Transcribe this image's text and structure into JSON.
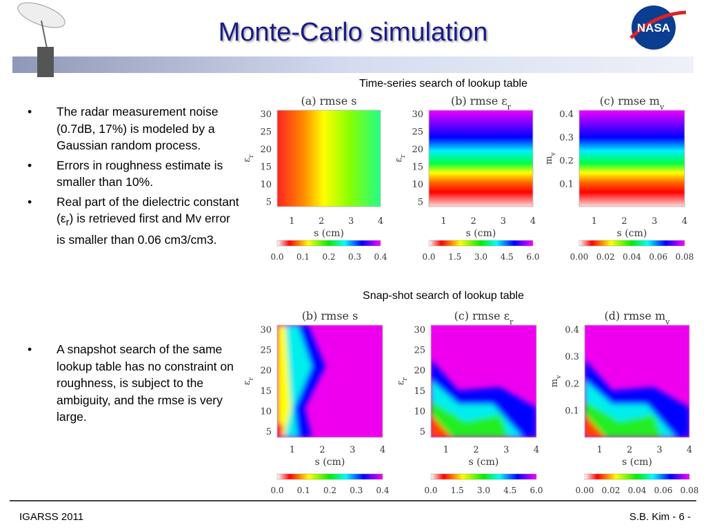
{
  "header": {
    "title": "Monte-Carlo simulation"
  },
  "bullets_top": [
    [
      "The radar measurement noise (0.7dB, 17%) is modeled by a Gaussian random process."
    ],
    [
      "Errors in roughness estimate is smaller than 10%."
    ],
    [
      "Real part of the dielectric constant (ε",
      "r",
      ") is retrieved first and Mv error is smaller than 0.06 cm3/cm3."
    ]
  ],
  "bullets_bottom": [
    [
      "A snapshot search of the same lookup table has no constraint on roughness, is subject to the ambiguity, and the rmse is very large."
    ]
  ],
  "sections": [
    {
      "caption": "Time-series search of lookup table",
      "panels": [
        {
          "title": "(a) rmse s",
          "ylabel": "ε",
          "ylabel_sub": "r",
          "yticks": [
            "30",
            "25",
            "20",
            "15",
            "10",
            "5"
          ],
          "xticks": [
            "1",
            "2",
            "3",
            "4"
          ],
          "xlabel": "s (cm)",
          "cbar": [
            "0.0",
            "0.1",
            "0.2",
            "0.3",
            "0.4"
          ]
        },
        {
          "title": "(b) rmse ε",
          "title_sub": "r",
          "ylabel": "ε",
          "ylabel_sub": "r",
          "yticks": [
            "30",
            "25",
            "20",
            "15",
            "10",
            "5"
          ],
          "xticks": [
            "1",
            "2",
            "3",
            "4"
          ],
          "xlabel": "s (cm)",
          "cbar": [
            "0.0",
            "1.5",
            "3.0",
            "4.5",
            "6.0"
          ]
        },
        {
          "title": "(c) rmse m",
          "title_sub": "v",
          "ylabel": "m",
          "ylabel_sub": "v",
          "yticks": [
            "0.4",
            "0.3",
            "0.2",
            "0.1"
          ],
          "xticks": [
            "1",
            "2",
            "3",
            "4"
          ],
          "xlabel": "s (cm)",
          "cbar": [
            "0.00",
            "0.02",
            "0.04",
            "0.06",
            "0.08"
          ]
        }
      ]
    },
    {
      "caption": "Snap-shot search of lookup table",
      "panels": [
        {
          "title": "(b) rmse s",
          "ylabel": "ε",
          "ylabel_sub": "r",
          "yticks": [
            "30",
            "25",
            "20",
            "15",
            "10",
            "5"
          ],
          "xticks": [
            "1",
            "2",
            "3",
            "4"
          ],
          "xlabel": "s (cm)",
          "cbar": [
            "0.0",
            "0.1",
            "0.2",
            "0.3",
            "0.4"
          ]
        },
        {
          "title": "(c) rmse ε",
          "title_sub": "r",
          "ylabel": "ε",
          "ylabel_sub": "r",
          "yticks": [
            "30",
            "25",
            "20",
            "15",
            "10",
            "5"
          ],
          "xticks": [
            "1",
            "2",
            "3",
            "4"
          ],
          "xlabel": "s (cm)",
          "cbar": [
            "0.0",
            "1.5",
            "3.0",
            "4.5",
            "6.0"
          ]
        },
        {
          "title": "(d) rmse m",
          "title_sub": "v",
          "ylabel": "m",
          "ylabel_sub": "v",
          "yticks": [
            "0.4",
            "0.3",
            "0.2",
            "0.1"
          ],
          "xticks": [
            "1",
            "2",
            "3",
            "4"
          ],
          "xlabel": "s (cm)",
          "cbar": [
            "0.00",
            "0.02",
            "0.04",
            "0.06",
            "0.08"
          ]
        }
      ]
    }
  ],
  "footer": {
    "left": "IGARSS 2011",
    "right": "S.B. Kim - 6 -"
  }
}
